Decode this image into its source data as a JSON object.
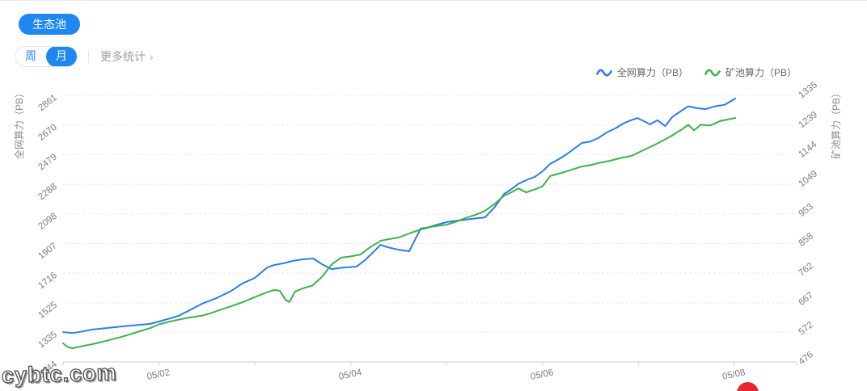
{
  "header": {
    "pool_button": "生态池"
  },
  "controls": {
    "week_label": "周",
    "month_label": "月",
    "selected": "月",
    "more_stats_label": "更多统计",
    "chevron": "›"
  },
  "legend": [
    {
      "label": "全网算力（PB）",
      "color": "#2a7cee"
    },
    {
      "label": "矿池算力（PB）",
      "color": "#3eb347"
    }
  ],
  "watermark": "cybtc.com",
  "colors": {
    "accent_blue": "#1f87f0",
    "line_blue": "#2a7cee",
    "line_green": "#3eb347",
    "grid": "#e8e8e8",
    "axis": "#cccccc",
    "tick_text": "#7d7d7d",
    "red_dot": "#e8262c"
  },
  "chart_data": {
    "type": "line",
    "title": "",
    "grid": "dashed-horizontal",
    "legend_position": "top-right",
    "x_axis": {
      "range": [
        0,
        7.65
      ],
      "unit": "day",
      "ticks": [
        {
          "day": 1,
          "label": "05/02"
        },
        {
          "day": 3,
          "label": "05/04"
        },
        {
          "day": 5,
          "label": "05/06"
        },
        {
          "day": 7,
          "label": "05/08"
        }
      ]
    },
    "left_axis": {
      "name": "全网算力（PB）",
      "range": [
        1144,
        2861
      ],
      "ticks": [
        1144,
        1335,
        1525,
        1716,
        1907,
        2098,
        2288,
        2479,
        2670,
        2861
      ]
    },
    "right_axis": {
      "name": "矿池算力（PB）",
      "range": [
        476,
        1335
      ],
      "ticks": [
        476,
        572,
        667,
        762,
        858,
        953,
        1049,
        1144,
        1239,
        1335
      ]
    },
    "series": [
      {
        "name": "全网算力（PB）",
        "axis": "left",
        "color": "#2a7cee",
        "points": [
          [
            0,
            1336
          ],
          [
            0.1,
            1330
          ],
          [
            0.2,
            1340
          ],
          [
            0.3,
            1352
          ],
          [
            0.45,
            1362
          ],
          [
            0.6,
            1372
          ],
          [
            0.75,
            1380
          ],
          [
            0.91,
            1389
          ],
          [
            1,
            1404
          ],
          [
            1.1,
            1422
          ],
          [
            1.2,
            1440
          ],
          [
            1.3,
            1470
          ],
          [
            1.45,
            1519
          ],
          [
            1.6,
            1555
          ],
          [
            1.75,
            1600
          ],
          [
            1.87,
            1649
          ],
          [
            2,
            1685
          ],
          [
            2.13,
            1752
          ],
          [
            2.2,
            1768
          ],
          [
            2.3,
            1780
          ],
          [
            2.4,
            1795
          ],
          [
            2.5,
            1805
          ],
          [
            2.61,
            1810
          ],
          [
            2.7,
            1773
          ],
          [
            2.8,
            1742
          ],
          [
            2.9,
            1750
          ],
          [
            3.06,
            1758
          ],
          [
            3.15,
            1800
          ],
          [
            3.25,
            1860
          ],
          [
            3.31,
            1898
          ],
          [
            3.4,
            1880
          ],
          [
            3.5,
            1866
          ],
          [
            3.61,
            1857
          ],
          [
            3.67,
            1930
          ],
          [
            3.73,
            2003
          ],
          [
            3.8,
            2010
          ],
          [
            3.9,
            2028
          ],
          [
            4,
            2044
          ],
          [
            4.1,
            2053
          ],
          [
            4.2,
            2060
          ],
          [
            4.3,
            2068
          ],
          [
            4.4,
            2075
          ],
          [
            4.5,
            2140
          ],
          [
            4.6,
            2226
          ],
          [
            4.66,
            2250
          ],
          [
            4.75,
            2292
          ],
          [
            4.85,
            2320
          ],
          [
            4.92,
            2336
          ],
          [
            5,
            2372
          ],
          [
            5.08,
            2420
          ],
          [
            5.17,
            2450
          ],
          [
            5.25,
            2481
          ],
          [
            5.33,
            2517
          ],
          [
            5.41,
            2554
          ],
          [
            5.5,
            2564
          ],
          [
            5.58,
            2585
          ],
          [
            5.67,
            2622
          ],
          [
            5.76,
            2648
          ],
          [
            5.84,
            2679
          ],
          [
            5.92,
            2700
          ],
          [
            5.99,
            2715
          ],
          [
            6.06,
            2694
          ],
          [
            6.12,
            2674
          ],
          [
            6.2,
            2700
          ],
          [
            6.28,
            2663
          ],
          [
            6.35,
            2720
          ],
          [
            6.45,
            2762
          ],
          [
            6.52,
            2790
          ],
          [
            6.6,
            2780
          ],
          [
            6.7,
            2772
          ],
          [
            6.8,
            2790
          ],
          [
            6.9,
            2800
          ],
          [
            7.01,
            2840
          ]
        ]
      },
      {
        "name": "矿池算力（PB）",
        "axis": "right",
        "color": "#3eb347",
        "points": [
          [
            0,
            536
          ],
          [
            0.05,
            524
          ],
          [
            0.1,
            520
          ],
          [
            0.2,
            527
          ],
          [
            0.3,
            533
          ],
          [
            0.4,
            540
          ],
          [
            0.5,
            548
          ],
          [
            0.6,
            556
          ],
          [
            0.7,
            565
          ],
          [
            0.8,
            575
          ],
          [
            0.91,
            585
          ],
          [
            1,
            597
          ],
          [
            1.1,
            605
          ],
          [
            1.2,
            612
          ],
          [
            1.3,
            618
          ],
          [
            1.45,
            625
          ],
          [
            1.55,
            634
          ],
          [
            1.65,
            645
          ],
          [
            1.75,
            655
          ],
          [
            1.87,
            668
          ],
          [
            2,
            685
          ],
          [
            2.1,
            697
          ],
          [
            2.2,
            708
          ],
          [
            2.26,
            705
          ],
          [
            2.32,
            676
          ],
          [
            2.36,
            669
          ],
          [
            2.42,
            703
          ],
          [
            2.5,
            713
          ],
          [
            2.6,
            722
          ],
          [
            2.7,
            750
          ],
          [
            2.8,
            790
          ],
          [
            2.9,
            812
          ],
          [
            3,
            816
          ],
          [
            3.1,
            822
          ],
          [
            3.2,
            845
          ],
          [
            3.31,
            866
          ],
          [
            3.4,
            872
          ],
          [
            3.5,
            877
          ],
          [
            3.61,
            890
          ],
          [
            3.73,
            903
          ],
          [
            3.85,
            912
          ],
          [
            4,
            918
          ],
          [
            4.1,
            928
          ],
          [
            4.2,
            940
          ],
          [
            4.3,
            950
          ],
          [
            4.4,
            963
          ],
          [
            4.5,
            985
          ],
          [
            4.6,
            1012
          ],
          [
            4.66,
            1020
          ],
          [
            4.75,
            1035
          ],
          [
            4.83,
            1022
          ],
          [
            4.92,
            1032
          ],
          [
            5,
            1042
          ],
          [
            5.08,
            1075
          ],
          [
            5.2,
            1085
          ],
          [
            5.3,
            1095
          ],
          [
            5.4,
            1105
          ],
          [
            5.5,
            1110
          ],
          [
            5.6,
            1118
          ],
          [
            5.7,
            1124
          ],
          [
            5.8,
            1132
          ],
          [
            5.93,
            1140
          ],
          [
            6.05,
            1158
          ],
          [
            6.2,
            1180
          ],
          [
            6.35,
            1205
          ],
          [
            6.45,
            1225
          ],
          [
            6.52,
            1240
          ],
          [
            6.58,
            1222
          ],
          [
            6.65,
            1240
          ],
          [
            6.75,
            1238
          ],
          [
            6.85,
            1252
          ],
          [
            7.01,
            1262
          ]
        ]
      }
    ]
  }
}
